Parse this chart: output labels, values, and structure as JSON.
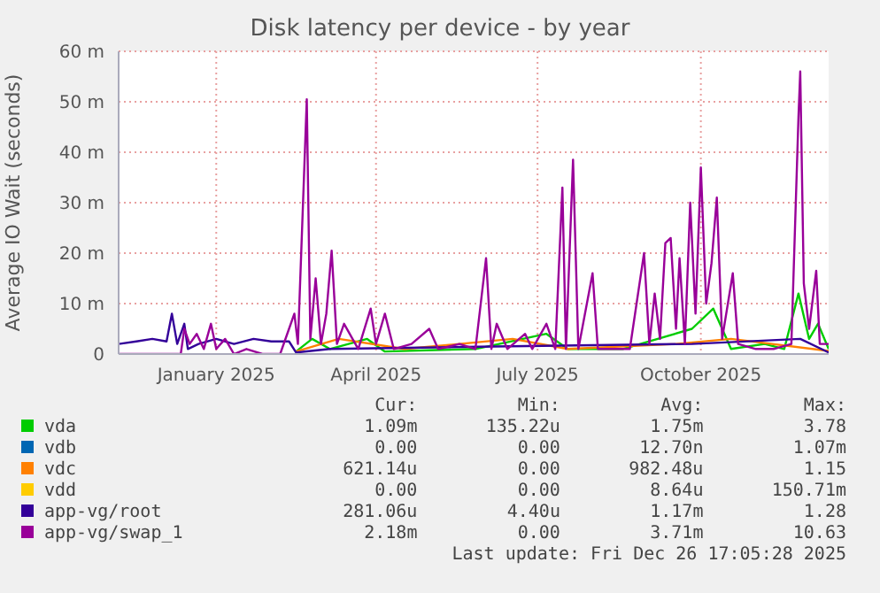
{
  "chart_data": {
    "type": "line",
    "title": "Disk latency per device - by year",
    "ylabel": "Average IO Wait (seconds)",
    "xlim": [
      "2024-11-21",
      "2025-12-26"
    ],
    "xticks": [
      {
        "value": "2025-01-15",
        "label": "January 2025"
      },
      {
        "value": "2025-04-15",
        "label": "April 2025"
      },
      {
        "value": "2025-07-15",
        "label": "July 2025"
      },
      {
        "value": "2025-10-15",
        "label": "October 2025"
      }
    ],
    "ylim": [
      0,
      60
    ],
    "yticks": [
      {
        "value": 0,
        "label": "0"
      },
      {
        "value": 10,
        "label": "10 m"
      },
      {
        "value": 20,
        "label": "20 m"
      },
      {
        "value": 30,
        "label": "30 m"
      },
      {
        "value": 40,
        "label": "40 m"
      },
      {
        "value": 50,
        "label": "50 m"
      },
      {
        "value": 60,
        "label": "60 m"
      }
    ],
    "grid": true,
    "legend": "bottom",
    "marker": "none",
    "line_style": "solid",
    "series": [
      {
        "name": "vda",
        "color": "#00cc00",
        "x": [
          "2025-03-01",
          "2025-03-10",
          "2025-03-20",
          "2025-04-10",
          "2025-04-20",
          "2025-06-10",
          "2025-07-20",
          "2025-08-01",
          "2025-09-01",
          "2025-10-10",
          "2025-10-22",
          "2025-11-01",
          "2025-11-20",
          "2025-12-01",
          "2025-12-09",
          "2025-12-15",
          "2025-12-20",
          "2025-12-26"
        ],
        "values": [
          0.5,
          3,
          1,
          3,
          0.5,
          1,
          4,
          1,
          1,
          5,
          9,
          1,
          2,
          1,
          12,
          3,
          6,
          1
        ]
      },
      {
        "name": "vdb",
        "color": "#0066b3"
      },
      {
        "name": "vdc",
        "color": "#ff8000",
        "x": [
          "2025-03-01",
          "2025-03-25",
          "2025-05-01",
          "2025-06-01",
          "2025-07-01",
          "2025-08-01",
          "2025-10-01",
          "2025-11-01",
          "2025-12-26"
        ],
        "values": [
          0.5,
          3,
          1,
          2,
          3,
          1,
          2,
          3,
          0.6
        ]
      },
      {
        "name": "vdd",
        "color": "#ffcc00"
      },
      {
        "name": "app-vg/root",
        "color": "#330099",
        "x": [
          "2024-11-21",
          "2024-12-01",
          "2024-12-10",
          "2024-12-18",
          "2024-12-21",
          "2024-12-24",
          "2024-12-28",
          "2024-12-30",
          "2025-01-05",
          "2025-01-15",
          "2025-01-25",
          "2025-02-05",
          "2025-02-15",
          "2025-02-25",
          "2025-03-01",
          "2025-03-20",
          "2025-06-20",
          "2025-10-10",
          "2025-12-10",
          "2025-12-26"
        ],
        "values": [
          2,
          2.5,
          3,
          2.5,
          8,
          2,
          6,
          1,
          2,
          3,
          2,
          3,
          2.5,
          2.5,
          0.3,
          1,
          1.5,
          2,
          3,
          0.3
        ]
      },
      {
        "name": "app-vg/swap_1",
        "color": "#990099",
        "x": [
          "2024-11-21",
          "2024-12-26",
          "2024-12-28",
          "2024-12-31",
          "2025-01-04",
          "2025-01-08",
          "2025-01-12",
          "2025-01-15",
          "2025-01-20",
          "2025-01-25",
          "2025-02-01",
          "2025-02-10",
          "2025-02-20",
          "2025-02-25",
          "2025-02-28",
          "2025-03-02",
          "2025-03-07",
          "2025-03-09",
          "2025-03-12",
          "2025-03-15",
          "2025-03-18",
          "2025-03-21",
          "2025-03-24",
          "2025-03-28",
          "2025-04-05",
          "2025-04-12",
          "2025-04-15",
          "2025-04-20",
          "2025-04-25",
          "2025-05-05",
          "2025-05-15",
          "2025-05-20",
          "2025-06-01",
          "2025-06-10",
          "2025-06-16",
          "2025-06-19",
          "2025-06-22",
          "2025-06-28",
          "2025-07-08",
          "2025-07-12",
          "2025-07-20",
          "2025-07-25",
          "2025-07-29",
          "2025-07-31",
          "2025-08-04",
          "2025-08-07",
          "2025-08-15",
          "2025-08-18",
          "2025-08-25",
          "2025-09-05",
          "2025-09-13",
          "2025-09-16",
          "2025-09-19",
          "2025-09-22",
          "2025-09-25",
          "2025-09-28",
          "2025-10-01",
          "2025-10-03",
          "2025-10-06",
          "2025-10-09",
          "2025-10-12",
          "2025-10-15",
          "2025-10-18",
          "2025-10-21",
          "2025-10-24",
          "2025-10-27",
          "2025-11-02",
          "2025-11-05",
          "2025-11-15",
          "2025-11-25",
          "2025-12-05",
          "2025-12-09",
          "2025-12-10",
          "2025-12-12",
          "2025-12-15",
          "2025-12-19",
          "2025-12-21",
          "2025-12-26"
        ],
        "values": [
          0,
          0,
          5,
          2,
          4,
          1,
          6,
          1,
          3,
          0,
          1,
          0,
          0,
          5,
          8,
          2,
          50.5,
          3,
          15,
          2,
          8,
          20.5,
          2,
          6,
          1,
          9,
          2,
          8,
          1,
          2,
          5,
          1,
          2,
          1,
          19,
          1,
          6,
          1,
          4,
          1,
          6,
          1,
          33,
          1,
          38.5,
          1,
          16,
          1,
          1,
          1,
          20,
          2,
          12,
          3,
          22,
          23,
          5,
          19,
          2,
          30,
          8,
          37,
          10,
          18,
          31,
          3,
          16,
          2,
          1,
          1,
          2,
          47,
          56,
          14,
          5,
          16.5,
          2,
          2
        ]
      }
    ],
    "annotations": [
      "Cur:",
      "Min:",
      "Avg:",
      "Max:",
      "1.09m",
      "135.22u",
      "1.75m",
      "3.78",
      "0.00",
      "0.00",
      "12.70n",
      "1.07m",
      "621.14u",
      "0.00",
      "982.48u",
      "1.15",
      "0.00",
      "0.00",
      "8.64u",
      "150.71m",
      "281.06u",
      "4.40u",
      "1.17m",
      "1.28",
      "2.18m",
      "0.00",
      "3.71m",
      "10.63",
      "Last update: Fri Dec 26 17:05:28 2025"
    ]
  }
}
